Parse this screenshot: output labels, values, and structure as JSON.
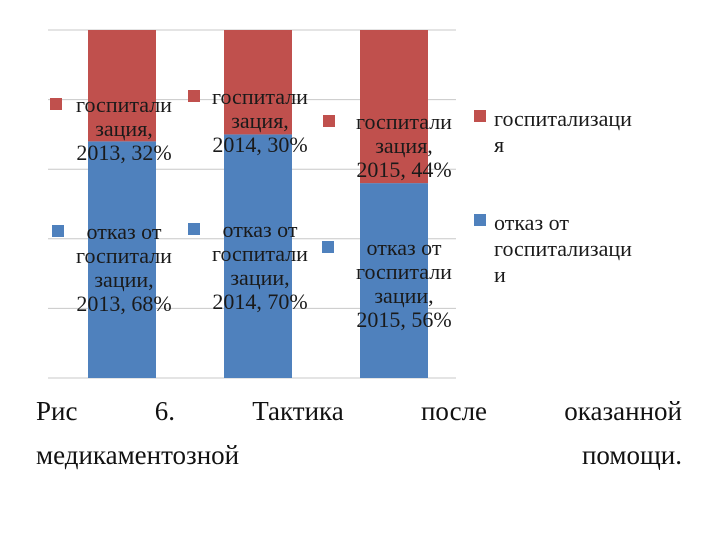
{
  "chart_data": {
    "type": "bar",
    "stacked": true,
    "percent_stacked": true,
    "categories": [
      "2013",
      "2014",
      "2015"
    ],
    "ylim": [
      0,
      100
    ],
    "grid": true,
    "legend_position": "right",
    "series": [
      {
        "name": "отказ от госпитализации",
        "color": "#4f81bd",
        "values": [
          68,
          70,
          56
        ],
        "labels": [
          [
            "отказ от",
            "госпитали",
            "зации,",
            "2013, 68%"
          ],
          [
            "отказ от",
            "госпитали",
            "зации,",
            "2014, 70%"
          ],
          [
            "отказ от",
            "госпитали",
            "зации,",
            "2015, 56%"
          ]
        ],
        "legend_lines": [
          "отказ от",
          "госпитализаци",
          "и"
        ]
      },
      {
        "name": "госпитализация",
        "color": "#c0504d",
        "values": [
          32,
          30,
          44
        ],
        "labels": [
          [
            "госпитали",
            "зация,",
            "2013, 32%"
          ],
          [
            "госпитали",
            "зация,",
            "2014, 30%"
          ],
          [
            "госпитали",
            "зация,",
            "2015, 44%"
          ]
        ],
        "legend_lines": [
          "госпитализаци",
          "я"
        ]
      }
    ]
  },
  "caption": {
    "line1_words": [
      "Рис",
      "6.",
      "Тактика",
      "после",
      "оказанной"
    ],
    "line2_words": [
      "медикаментозной",
      "помощи."
    ]
  }
}
